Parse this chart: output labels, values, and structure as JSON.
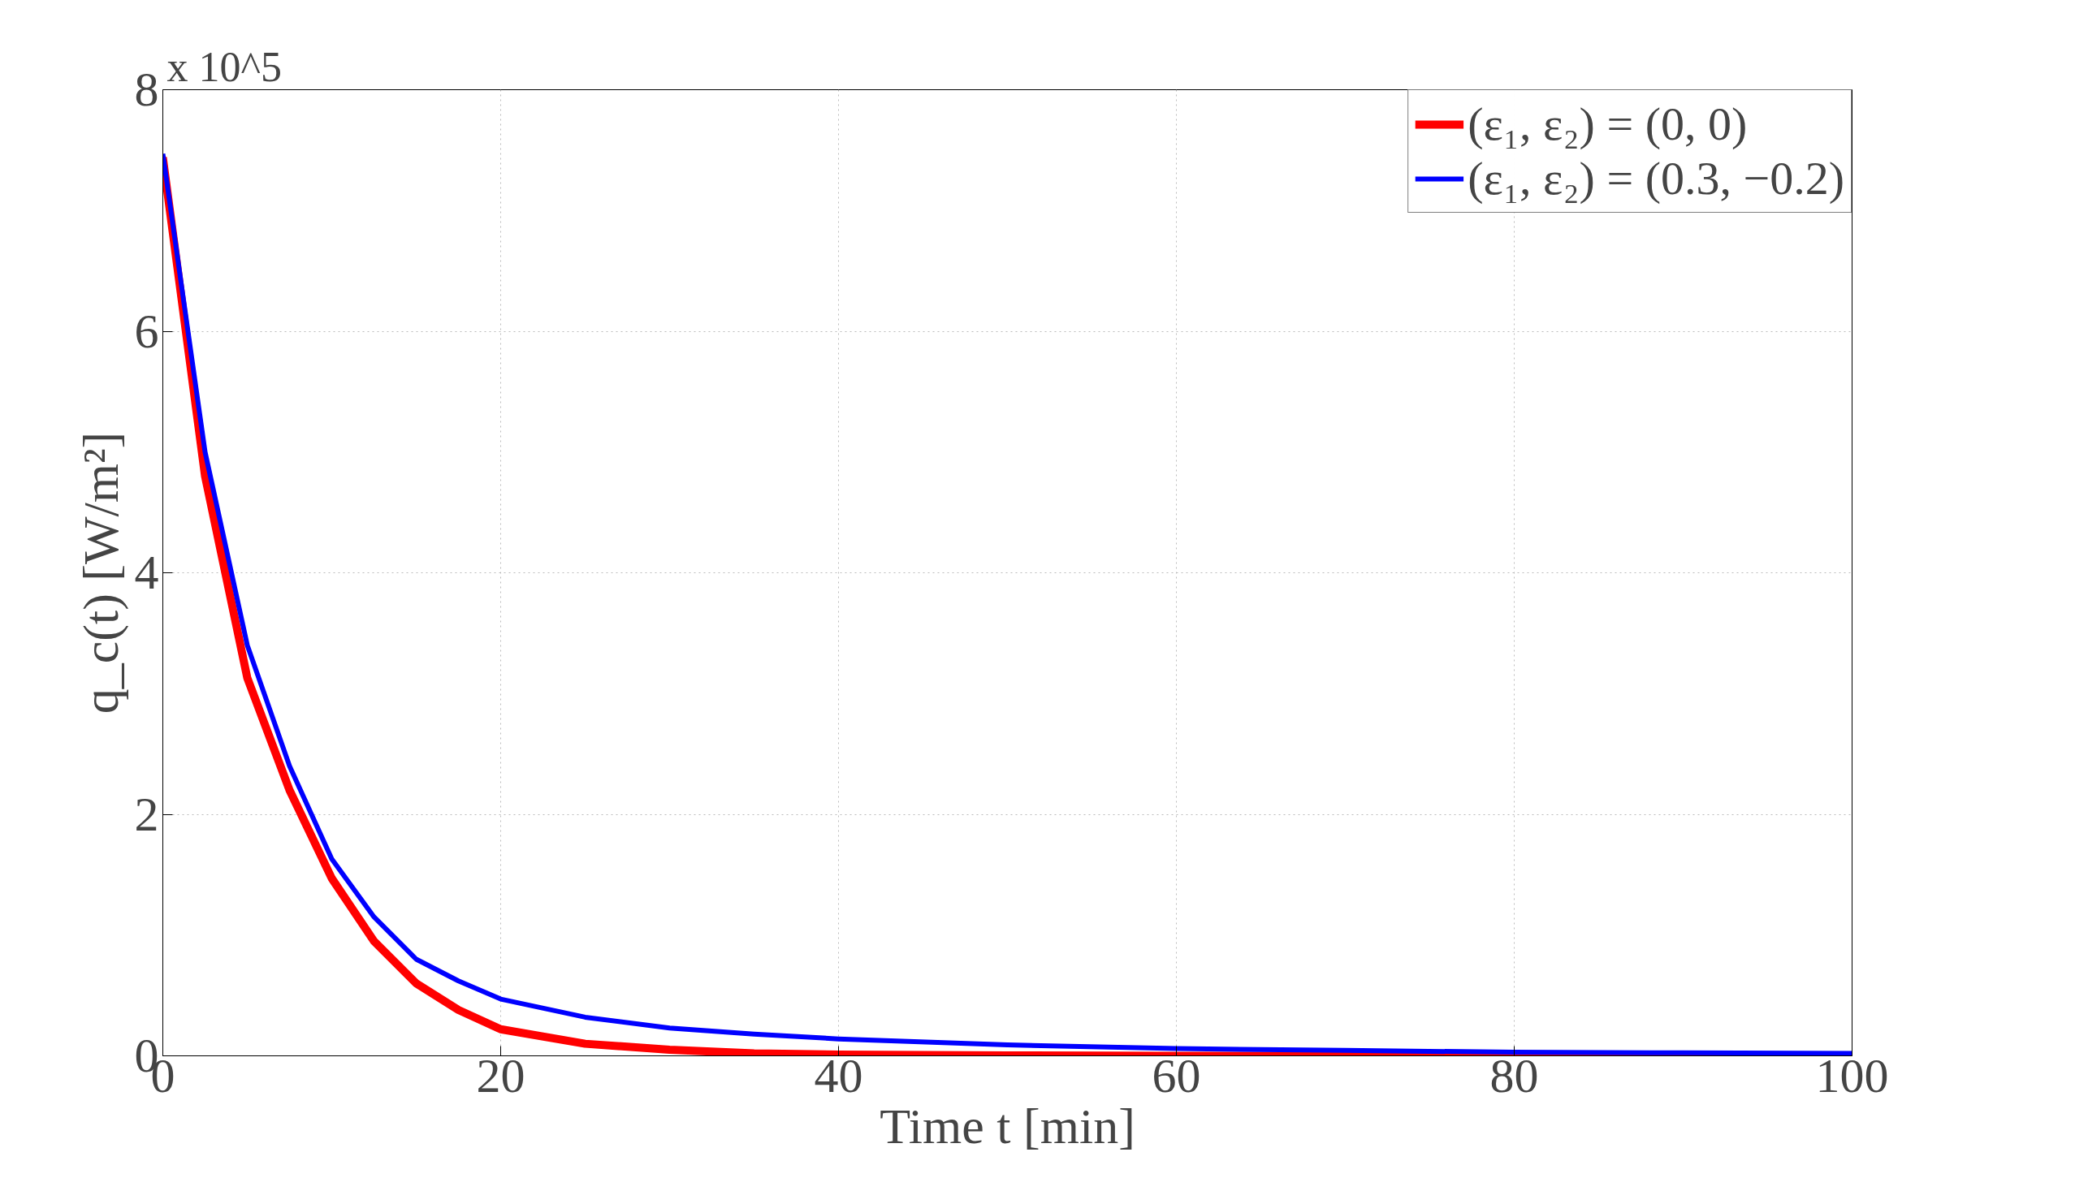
{
  "chart_data": {
    "type": "line",
    "xlabel": "Time t [min]",
    "ylabel": "q_c(t) [W/m²]",
    "annotations": [
      "x 10^5"
    ],
    "x": [
      0,
      2.5,
      5,
      7.5,
      10,
      12.5,
      15,
      17.5,
      20,
      25,
      30,
      35,
      40,
      50,
      60,
      70,
      80,
      90,
      100
    ],
    "series": [
      {
        "name": "(ε₁, ε₂) = (0, 0)",
        "color": "#ff0000",
        "values": [
          7.44,
          4.8,
          3.13,
          2.2,
          1.47,
          0.95,
          0.6,
          0.38,
          0.22,
          0.1,
          0.05,
          0.02,
          0.01,
          0.004,
          0,
          0,
          0,
          0,
          0
        ]
      },
      {
        "name": "(ε₁, ε₂) = (0.3, −0.2)",
        "color": "#0000ff",
        "values": [
          7.47,
          5.0,
          3.4,
          2.4,
          1.63,
          1.15,
          0.8,
          0.62,
          0.47,
          0.32,
          0.23,
          0.18,
          0.14,
          0.09,
          0.06,
          0.045,
          0.03,
          0.025,
          0.02
        ]
      }
    ],
    "xlim": [
      0,
      100
    ],
    "ylim": [
      0,
      8
    ],
    "xticks": [
      0,
      20,
      40,
      60,
      80,
      100
    ],
    "yticks": [
      0,
      2,
      4,
      6,
      8
    ],
    "grid": true,
    "legend": "top right",
    "line_style": "solid",
    "marker": "none"
  }
}
